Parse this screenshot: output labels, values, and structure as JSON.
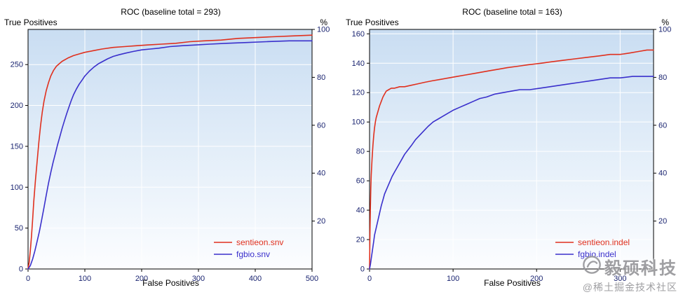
{
  "watermark": {
    "brand": "毅硕科技",
    "community": "@稀土掘金技术社区"
  },
  "chart_data": [
    {
      "type": "line",
      "title": "ROC (baseline total = 293)",
      "ylabel": "True Positives",
      "xlabel": "False Positives",
      "right_axis_label": "%",
      "baseline_total": 293,
      "xlim": [
        0,
        500
      ],
      "ylim": [
        0,
        293
      ],
      "xticks": [
        0,
        100,
        200,
        300,
        400,
        500
      ],
      "yticks": [
        0,
        50,
        100,
        150,
        200,
        250
      ],
      "percent_ticks": [
        20,
        40,
        60,
        80,
        100
      ],
      "grid": true,
      "legend_position": "bottom-right",
      "series": [
        {
          "name": "sentieon.snv",
          "color": "#e0301e",
          "points": [
            [
              0,
              0
            ],
            [
              2,
              8
            ],
            [
              4,
              22
            ],
            [
              6,
              40
            ],
            [
              8,
              60
            ],
            [
              10,
              82
            ],
            [
              13,
              108
            ],
            [
              16,
              132
            ],
            [
              19,
              155
            ],
            [
              22,
              175
            ],
            [
              25,
              192
            ],
            [
              28,
              205
            ],
            [
              32,
              218
            ],
            [
              36,
              228
            ],
            [
              40,
              236
            ],
            [
              45,
              243
            ],
            [
              50,
              248
            ],
            [
              55,
              251
            ],
            [
              60,
              254
            ],
            [
              70,
              258
            ],
            [
              80,
              261
            ],
            [
              90,
              263
            ],
            [
              100,
              265
            ],
            [
              115,
              267
            ],
            [
              130,
              269
            ],
            [
              150,
              271
            ],
            [
              170,
              272
            ],
            [
              190,
              273
            ],
            [
              210,
              274
            ],
            [
              235,
              275
            ],
            [
              260,
              276
            ],
            [
              285,
              278
            ],
            [
              310,
              279
            ],
            [
              340,
              280
            ],
            [
              370,
              282
            ],
            [
              400,
              283
            ],
            [
              430,
              284
            ],
            [
              465,
              285
            ],
            [
              500,
              286
            ]
          ]
        },
        {
          "name": "fgbio.snv",
          "color": "#3a30cc",
          "points": [
            [
              0,
              0
            ],
            [
              4,
              4
            ],
            [
              8,
              12
            ],
            [
              12,
              22
            ],
            [
              16,
              34
            ],
            [
              20,
              46
            ],
            [
              24,
              60
            ],
            [
              28,
              75
            ],
            [
              32,
              90
            ],
            [
              36,
              105
            ],
            [
              40,
              118
            ],
            [
              44,
              130
            ],
            [
              48,
              141
            ],
            [
              52,
              152
            ],
            [
              56,
              162
            ],
            [
              60,
              172
            ],
            [
              64,
              181
            ],
            [
              68,
              190
            ],
            [
              72,
              198
            ],
            [
              76,
              206
            ],
            [
              80,
              213
            ],
            [
              85,
              220
            ],
            [
              90,
              226
            ],
            [
              95,
              231
            ],
            [
              100,
              236
            ],
            [
              108,
              242
            ],
            [
              116,
              247
            ],
            [
              124,
              251
            ],
            [
              132,
              254
            ],
            [
              140,
              257
            ],
            [
              150,
              260
            ],
            [
              160,
              262
            ],
            [
              172,
              264
            ],
            [
              185,
              266
            ],
            [
              200,
              268
            ],
            [
              215,
              269
            ],
            [
              230,
              270
            ],
            [
              250,
              272
            ],
            [
              270,
              273
            ],
            [
              295,
              274
            ],
            [
              320,
              275
            ],
            [
              350,
              276
            ],
            [
              385,
              277
            ],
            [
              420,
              278
            ],
            [
              460,
              279
            ],
            [
              500,
              279
            ]
          ]
        }
      ]
    },
    {
      "type": "line",
      "title": "ROC (baseline total = 163)",
      "ylabel": "True Positives",
      "xlabel": "False Positives",
      "right_axis_label": "%",
      "baseline_total": 163,
      "xlim": [
        0,
        340
      ],
      "ylim": [
        0,
        163
      ],
      "xticks": [
        0,
        100,
        200,
        300
      ],
      "yticks": [
        0,
        20,
        40,
        60,
        80,
        100,
        120,
        140,
        160
      ],
      "percent_ticks": [
        20,
        40,
        60,
        80,
        100
      ],
      "grid": true,
      "legend_position": "bottom-right",
      "series": [
        {
          "name": "sentieon.indel",
          "color": "#e0301e",
          "points": [
            [
              0,
              0
            ],
            [
              0.5,
              25
            ],
            [
              1,
              42
            ],
            [
              1.5,
              55
            ],
            [
              2,
              64
            ],
            [
              3,
              75
            ],
            [
              4,
              84
            ],
            [
              5,
              91
            ],
            [
              6,
              96
            ],
            [
              7,
              100
            ],
            [
              8,
              103
            ],
            [
              10,
              107
            ],
            [
              12,
              111
            ],
            [
              14,
              114
            ],
            [
              16,
              117
            ],
            [
              18,
              119
            ],
            [
              20,
              121
            ],
            [
              23,
              122
            ],
            [
              26,
              123
            ],
            [
              30,
              123
            ],
            [
              36,
              124
            ],
            [
              42,
              124
            ],
            [
              50,
              125
            ],
            [
              58,
              126
            ],
            [
              66,
              127
            ],
            [
              75,
              128
            ],
            [
              85,
              129
            ],
            [
              95,
              130
            ],
            [
              105,
              131
            ],
            [
              115,
              132
            ],
            [
              125,
              133
            ],
            [
              135,
              134
            ],
            [
              145,
              135
            ],
            [
              155,
              136
            ],
            [
              165,
              137
            ],
            [
              178,
              138
            ],
            [
              190,
              139
            ],
            [
              205,
              140
            ],
            [
              218,
              141
            ],
            [
              232,
              142
            ],
            [
              246,
              143
            ],
            [
              260,
              144
            ],
            [
              275,
              145
            ],
            [
              288,
              146
            ],
            [
              300,
              146
            ],
            [
              312,
              147
            ],
            [
              322,
              148
            ],
            [
              332,
              149
            ],
            [
              340,
              149
            ]
          ]
        },
        {
          "name": "fgbio.indel",
          "color": "#3a30cc",
          "points": [
            [
              0,
              0
            ],
            [
              1,
              3
            ],
            [
              2,
              7
            ],
            [
              3,
              11
            ],
            [
              4,
              15
            ],
            [
              5,
              19
            ],
            [
              6,
              23
            ],
            [
              8,
              28
            ],
            [
              10,
              33
            ],
            [
              12,
              38
            ],
            [
              14,
              43
            ],
            [
              16,
              47
            ],
            [
              18,
              51
            ],
            [
              21,
              55
            ],
            [
              24,
              59
            ],
            [
              27,
              63
            ],
            [
              30,
              66
            ],
            [
              34,
              70
            ],
            [
              38,
              74
            ],
            [
              42,
              78
            ],
            [
              46,
              81
            ],
            [
              50,
              84
            ],
            [
              55,
              88
            ],
            [
              60,
              91
            ],
            [
              65,
              94
            ],
            [
              70,
              97
            ],
            [
              76,
              100
            ],
            [
              82,
              102
            ],
            [
              88,
              104
            ],
            [
              94,
              106
            ],
            [
              100,
              108
            ],
            [
              108,
              110
            ],
            [
              116,
              112
            ],
            [
              124,
              114
            ],
            [
              132,
              116
            ],
            [
              140,
              117
            ],
            [
              150,
              119
            ],
            [
              160,
              120
            ],
            [
              170,
              121
            ],
            [
              180,
              122
            ],
            [
              192,
              122
            ],
            [
              204,
              123
            ],
            [
              216,
              124
            ],
            [
              228,
              125
            ],
            [
              240,
              126
            ],
            [
              252,
              127
            ],
            [
              264,
              128
            ],
            [
              276,
              129
            ],
            [
              288,
              130
            ],
            [
              300,
              130
            ],
            [
              315,
              131
            ],
            [
              340,
              131
            ]
          ]
        }
      ]
    }
  ]
}
